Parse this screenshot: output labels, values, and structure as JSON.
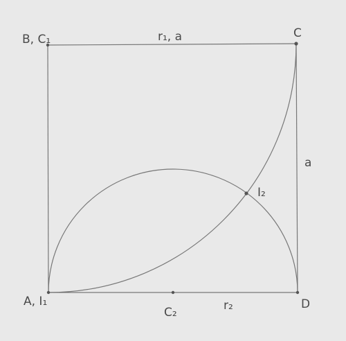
{
  "labels": {
    "top_left": "B, C₁",
    "top_right": "C",
    "top_side": "r₁, a",
    "right_side": "a",
    "intersection": "I₂",
    "bottom_left": "A, I₁",
    "bottom_mid": "C₂",
    "bottom_radius": "r₂",
    "bottom_right": "D"
  },
  "colors": {
    "paper": "#e9e9e9",
    "pencil": "#777777",
    "text": "#4a4a4a"
  }
}
